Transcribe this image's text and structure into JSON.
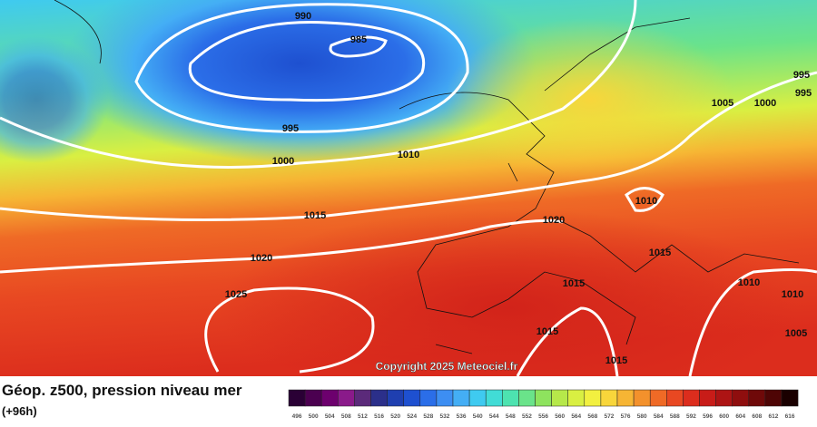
{
  "map": {
    "title": "Géop. z500, pression niveau mer",
    "subtitle": "(+96h)",
    "copyright": "Copyright 2025 Meteociel.fr",
    "isobar_labels": [
      "990",
      "985",
      "995",
      "1000",
      "1010",
      "1015",
      "1020",
      "1025",
      "1020",
      "1010",
      "1015",
      "1015",
      "1015",
      "1015",
      "1005",
      "1000",
      "995",
      "995",
      "1010",
      "1010",
      "1005"
    ],
    "scale": {
      "values": [
        496,
        500,
        504,
        508,
        512,
        516,
        520,
        524,
        528,
        532,
        536,
        540,
        544,
        548,
        552,
        556,
        560,
        564,
        568,
        572,
        576,
        580,
        584,
        588,
        592,
        596,
        600,
        604,
        608,
        612,
        616
      ],
      "colors": [
        "#2a0035",
        "#4b0050",
        "#6d006e",
        "#8a1a8a",
        "#5b2a7a",
        "#2b2f8a",
        "#1f3fb0",
        "#1e50d0",
        "#2b6ee8",
        "#3d8ef2",
        "#44aef5",
        "#3fcaf0",
        "#41dcd6",
        "#4de3b0",
        "#6ae38a",
        "#8ee35e",
        "#b6e84a",
        "#d9ef42",
        "#f2f040",
        "#f8d63b",
        "#f6b534",
        "#f3912c",
        "#ef6a26",
        "#e84822",
        "#dc2d1d",
        "#c81c18",
        "#ad1414",
        "#8f0e0e",
        "#6f0909",
        "#4e0505",
        "#1a0000"
      ]
    }
  }
}
